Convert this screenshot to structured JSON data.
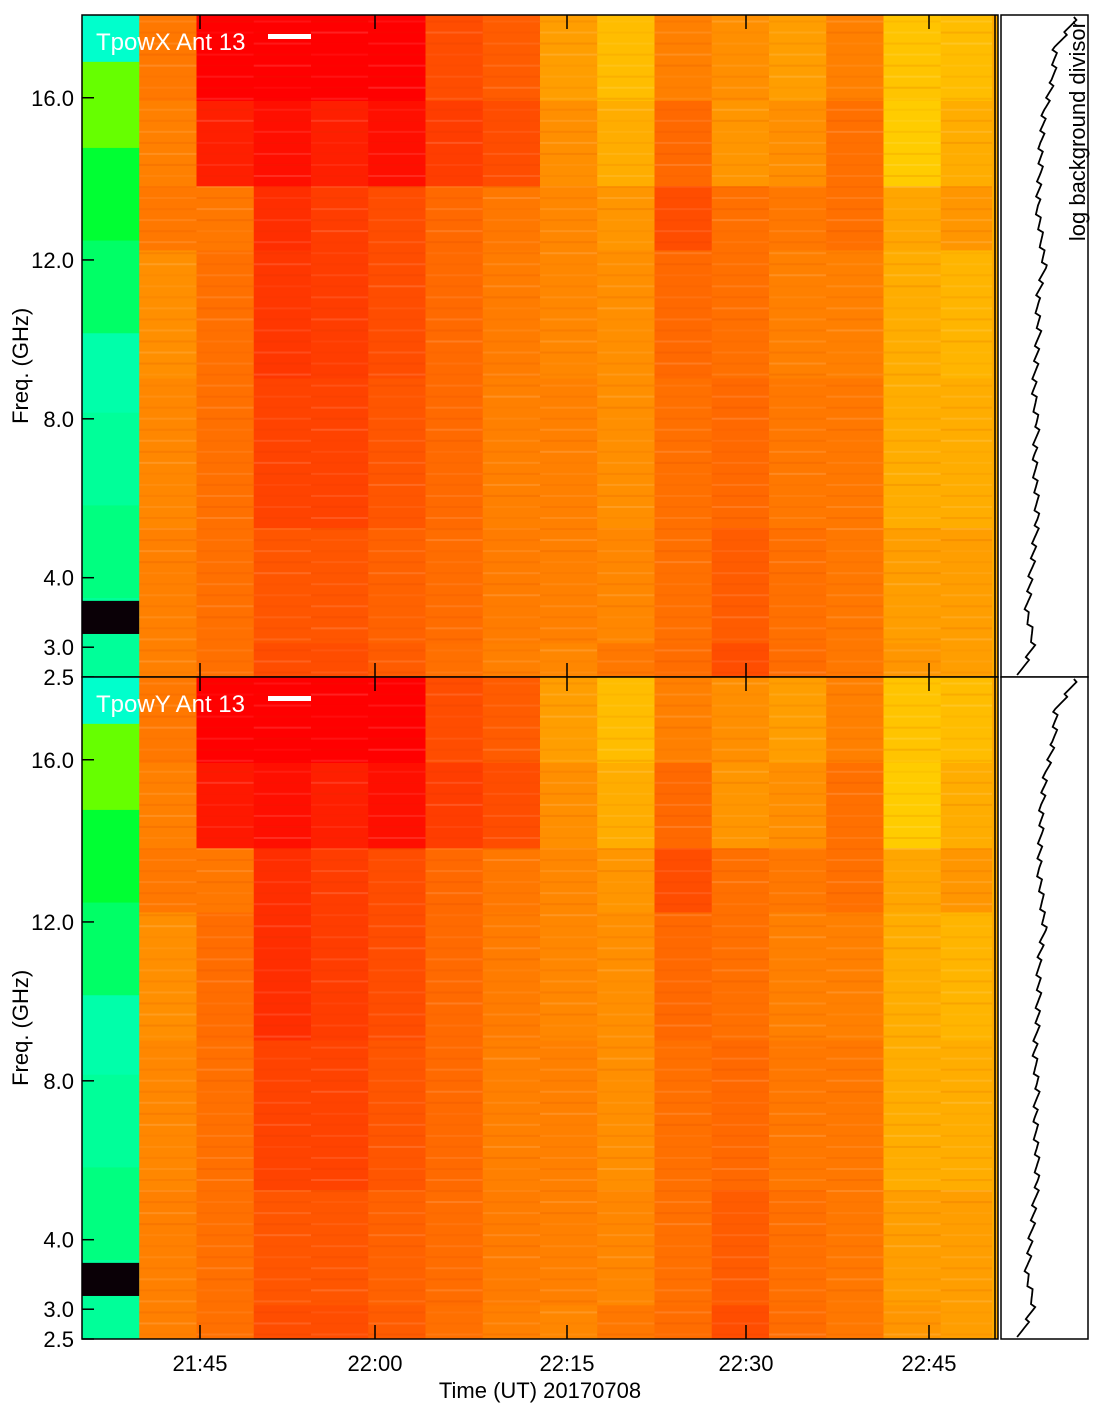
{
  "chart_data": [
    {
      "type": "heatmap",
      "title": "TpowX Ant 13",
      "ylabel": "Freq. (GHz)",
      "xlabel": "",
      "ylim": [
        2.5,
        18.0
      ],
      "yticks": [
        "2.5",
        "3.0",
        "4.0",
        "8.0",
        "12.0",
        "16.0"
      ],
      "xticks": [
        "21:45",
        "22:00",
        "22:15",
        "22:30",
        "22:45"
      ],
      "side_label": "log background divisor",
      "column_start_times": [
        "21:36",
        "21:41",
        "21:46",
        "21:51",
        "21:56",
        "22:01",
        "22:06",
        "22:11",
        "22:16",
        "22:21",
        "22:26",
        "22:31",
        "22:36",
        "22:41",
        "22:46",
        "22:51"
      ],
      "freq_bands_ghz": [
        {
          "from": 2.5,
          "to": 3.3
        },
        {
          "from": 3.3,
          "to": 6.0
        },
        {
          "from": 6.0,
          "to": 9.5
        },
        {
          "from": 9.5,
          "to": 12.5
        },
        {
          "from": 12.5,
          "to": 14.0
        },
        {
          "from": 14.0,
          "to": 16.0
        },
        {
          "from": 16.0,
          "to": 18.0
        }
      ],
      "colors": [
        "#ffcc00",
        "#ff9900",
        "#ff6600",
        "#ff0000"
      ],
      "matrix": [
        [
          0.2,
          0.3,
          0.3,
          0.3,
          0.3,
          0.25,
          0.4
        ],
        [
          0.5,
          0.5,
          0.45,
          0.4,
          0.55,
          0.5,
          0.55
        ],
        [
          0.6,
          0.6,
          0.6,
          0.6,
          0.55,
          0.9,
          1.0
        ],
        [
          0.75,
          0.72,
          0.78,
          0.82,
          0.85,
          0.95,
          1.0
        ],
        [
          0.75,
          0.72,
          0.78,
          0.8,
          0.8,
          0.9,
          1.0
        ],
        [
          0.7,
          0.68,
          0.72,
          0.75,
          0.75,
          0.95,
          1.0
        ],
        [
          0.6,
          0.62,
          0.64,
          0.64,
          0.65,
          0.8,
          0.75
        ],
        [
          0.5,
          0.52,
          0.5,
          0.52,
          0.55,
          0.75,
          0.7
        ],
        [
          0.45,
          0.5,
          0.5,
          0.45,
          0.45,
          0.4,
          0.3
        ],
        [
          0.55,
          0.45,
          0.4,
          0.4,
          0.35,
          0.2,
          0.1
        ],
        [
          0.62,
          0.6,
          0.6,
          0.65,
          0.75,
          0.65,
          0.5
        ],
        [
          0.75,
          0.7,
          0.65,
          0.6,
          0.6,
          0.35,
          0.4
        ],
        [
          0.62,
          0.6,
          0.55,
          0.5,
          0.55,
          0.4,
          0.3
        ],
        [
          0.55,
          0.55,
          0.55,
          0.5,
          0.6,
          0.6,
          0.5
        ],
        [
          0.35,
          0.3,
          0.2,
          0.2,
          0.25,
          0.0,
          0.05
        ],
        [
          0.3,
          0.3,
          0.2,
          0.15,
          0.35,
          0.2,
          0.1
        ]
      ],
      "background_divisor_profile": [
        0.95,
        0.65,
        0.62,
        0.5,
        0.45,
        0.44,
        0.4,
        0.45,
        0.5,
        0.4,
        0.42,
        0.38,
        0.35,
        0.4,
        0.36,
        0.38,
        0.4,
        0.35,
        0.3,
        0.25,
        0.35,
        0.15
      ]
    },
    {
      "type": "heatmap",
      "title": "TpowY Ant 13",
      "ylabel": "Freq. (GHz)",
      "xlabel": "Time (UT) 20170708",
      "ylim": [
        2.5,
        18.0
      ],
      "yticks": [
        "2.5",
        "3.0",
        "4.0",
        "8.0",
        "12.0",
        "16.0"
      ],
      "xticks": [
        "21:45",
        "22:00",
        "22:15",
        "22:30",
        "22:45"
      ],
      "column_start_times": [
        "21:36",
        "21:41",
        "21:46",
        "21:51",
        "21:56",
        "22:01",
        "22:06",
        "22:11",
        "22:16",
        "22:21",
        "22:26",
        "22:31",
        "22:36",
        "22:41",
        "22:46",
        "22:51"
      ],
      "freq_bands_ghz": [
        {
          "from": 2.5,
          "to": 3.3
        },
        {
          "from": 3.3,
          "to": 6.0
        },
        {
          "from": 6.0,
          "to": 9.5
        },
        {
          "from": 9.5,
          "to": 12.5
        },
        {
          "from": 12.5,
          "to": 14.0
        },
        {
          "from": 14.0,
          "to": 16.0
        },
        {
          "from": 16.0,
          "to": 18.0
        }
      ],
      "colors": [
        "#ffcc00",
        "#ff9900",
        "#ff6600",
        "#ff0000"
      ],
      "matrix": [
        [
          0.2,
          0.3,
          0.3,
          0.3,
          0.3,
          0.25,
          0.4
        ],
        [
          0.5,
          0.5,
          0.45,
          0.4,
          0.55,
          0.5,
          0.55
        ],
        [
          0.6,
          0.6,
          0.6,
          0.62,
          0.55,
          0.92,
          1.0
        ],
        [
          0.75,
          0.72,
          0.78,
          0.85,
          0.85,
          0.95,
          1.0
        ],
        [
          0.75,
          0.72,
          0.78,
          0.8,
          0.8,
          0.9,
          1.0
        ],
        [
          0.7,
          0.68,
          0.72,
          0.75,
          0.75,
          0.95,
          1.0
        ],
        [
          0.6,
          0.62,
          0.64,
          0.64,
          0.65,
          0.8,
          0.75
        ],
        [
          0.5,
          0.52,
          0.5,
          0.52,
          0.55,
          0.75,
          0.7
        ],
        [
          0.45,
          0.5,
          0.5,
          0.45,
          0.45,
          0.4,
          0.3
        ],
        [
          0.55,
          0.45,
          0.4,
          0.4,
          0.35,
          0.2,
          0.1
        ],
        [
          0.62,
          0.6,
          0.6,
          0.65,
          0.75,
          0.65,
          0.5
        ],
        [
          0.75,
          0.7,
          0.65,
          0.6,
          0.6,
          0.35,
          0.4
        ],
        [
          0.62,
          0.6,
          0.55,
          0.5,
          0.55,
          0.4,
          0.3
        ],
        [
          0.55,
          0.55,
          0.55,
          0.5,
          0.6,
          0.6,
          0.5
        ],
        [
          0.35,
          0.3,
          0.2,
          0.2,
          0.25,
          0.0,
          0.05
        ],
        [
          0.3,
          0.3,
          0.2,
          0.15,
          0.35,
          0.2,
          0.1
        ]
      ],
      "background_divisor_profile": [
        0.95,
        0.66,
        0.63,
        0.52,
        0.46,
        0.45,
        0.42,
        0.46,
        0.5,
        0.42,
        0.42,
        0.4,
        0.36,
        0.4,
        0.37,
        0.39,
        0.4,
        0.35,
        0.3,
        0.25,
        0.35,
        0.15
      ]
    }
  ]
}
